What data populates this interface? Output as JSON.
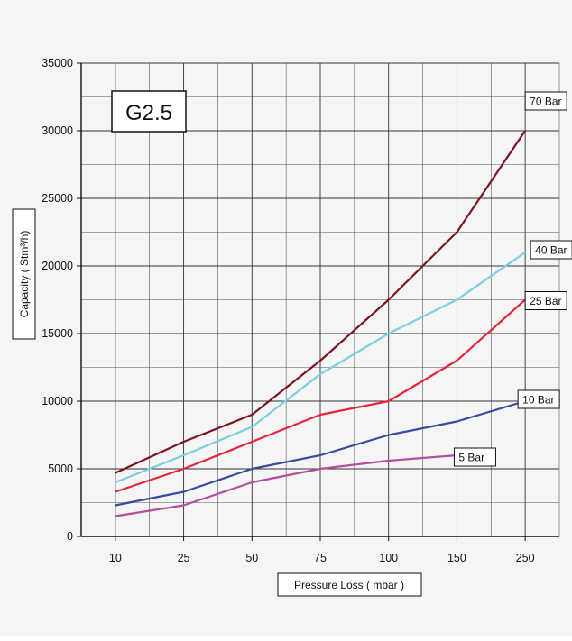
{
  "chart_data": {
    "type": "line",
    "title": "G2.5",
    "xlabel": "Pressure Loss ( mbar )",
    "ylabel": "Capacity  ( Stm³/h)",
    "categories": [
      "10",
      "25",
      "50",
      "75",
      "100",
      "150",
      "250"
    ],
    "ylim": [
      0,
      35000
    ],
    "yticks": [
      "0",
      "5000",
      "10000",
      "15000",
      "20000",
      "25000",
      "30000",
      "35000"
    ],
    "grid": true,
    "series": [
      {
        "name": "5 Bar",
        "color": "#b24fa1",
        "values": [
          1500,
          2300,
          4000,
          5000,
          5600,
          6000,
          null
        ]
      },
      {
        "name": "10 Bar",
        "color": "#3a4c9c",
        "values": [
          2300,
          3300,
          5000,
          6000,
          7500,
          8500,
          10000
        ]
      },
      {
        "name": "25 Bar",
        "color": "#e5253b",
        "values": [
          3300,
          5000,
          7000,
          9000,
          10000,
          13000,
          17500
        ]
      },
      {
        "name": "40 Bar",
        "color": "#79cfdf",
        "values": [
          4000,
          6000,
          8100,
          12000,
          15000,
          17500,
          21000
        ]
      },
      {
        "name": "70 Bar",
        "color": "#7b1420",
        "values": [
          4700,
          7000,
          9000,
          13000,
          17500,
          22500,
          30000
        ]
      }
    ]
  }
}
